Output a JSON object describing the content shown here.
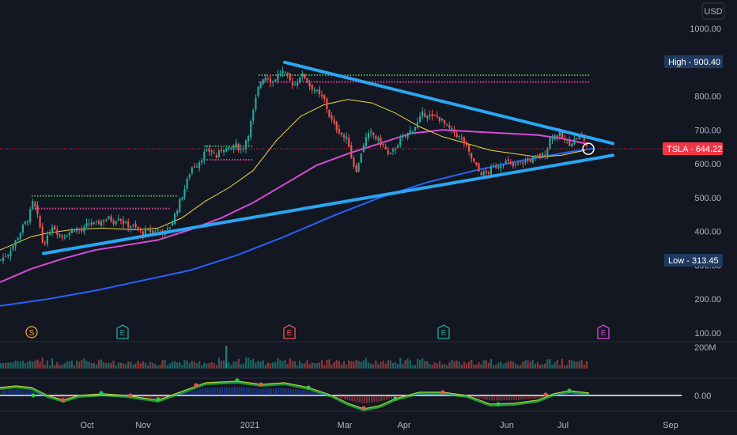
{
  "chart_data": {
    "type": "candlestick",
    "symbol": "TSLA",
    "currency": "USD",
    "last_price": 644.22,
    "high": {
      "label": "High",
      "value": 900.4
    },
    "low": {
      "label": "Low",
      "value": 313.45
    },
    "y_ticks": [
      "1000.00",
      "900.00",
      "800.00",
      "700.00",
      "600.00",
      "500.00",
      "400.00",
      "300.00",
      "200.00",
      "100.00"
    ],
    "x_ticks": [
      "Oct",
      "Nov",
      "2021",
      "Mar",
      "Apr",
      "Jun",
      "Jul",
      "Sep"
    ],
    "volume_tick": "200M",
    "osc_tick": "0.00",
    "ylim": [
      100,
      1000
    ],
    "events": [
      "S",
      "E",
      "E",
      "E",
      "E"
    ],
    "close_path": [
      [
        0,
        315
      ],
      [
        10,
        335
      ],
      [
        20,
        372
      ],
      [
        28,
        410
      ],
      [
        36,
        440
      ],
      [
        42,
        490
      ],
      [
        46,
        455
      ],
      [
        50,
        420
      ],
      [
        54,
        365
      ],
      [
        60,
        380
      ],
      [
        66,
        420
      ],
      [
        72,
        400
      ],
      [
        78,
        385
      ],
      [
        86,
        395
      ],
      [
        95,
        410
      ],
      [
        104,
        400
      ],
      [
        112,
        425
      ],
      [
        120,
        420
      ],
      [
        128,
        430
      ],
      [
        136,
        440
      ],
      [
        144,
        430
      ],
      [
        150,
        445
      ],
      [
        158,
        420
      ],
      [
        166,
        418
      ],
      [
        174,
        405
      ],
      [
        180,
        395
      ],
      [
        186,
        400
      ],
      [
        194,
        402
      ],
      [
        202,
        405
      ],
      [
        210,
        395
      ],
      [
        218,
        430
      ],
      [
        226,
        480
      ],
      [
        234,
        530
      ],
      [
        242,
        590
      ],
      [
        250,
        600
      ],
      [
        258,
        630
      ],
      [
        266,
        640
      ],
      [
        274,
        620
      ],
      [
        282,
        650
      ],
      [
        290,
        640
      ],
      [
        298,
        655
      ],
      [
        306,
        640
      ],
      [
        314,
        690
      ],
      [
        320,
        750
      ],
      [
        326,
        820
      ],
      [
        332,
        855
      ],
      [
        338,
        860
      ],
      [
        344,
        840
      ],
      [
        350,
        860
      ],
      [
        356,
        875
      ],
      [
        362,
        860
      ],
      [
        368,
        840
      ],
      [
        374,
        835
      ],
      [
        380,
        865
      ],
      [
        386,
        855
      ],
      [
        392,
        830
      ],
      [
        398,
        820
      ],
      [
        404,
        800
      ],
      [
        410,
        790
      ],
      [
        416,
        745
      ],
      [
        422,
        715
      ],
      [
        428,
        700
      ],
      [
        434,
        680
      ],
      [
        440,
        670
      ],
      [
        446,
        600
      ],
      [
        452,
        580
      ],
      [
        458,
        650
      ],
      [
        464,
        680
      ],
      [
        470,
        690
      ],
      [
        478,
        670
      ],
      [
        486,
        650
      ],
      [
        492,
        620
      ],
      [
        498,
        640
      ],
      [
        504,
        665
      ],
      [
        510,
        675
      ],
      [
        516,
        690
      ],
      [
        522,
        705
      ],
      [
        528,
        720
      ],
      [
        534,
        745
      ],
      [
        540,
        750
      ],
      [
        546,
        735
      ],
      [
        552,
        740
      ],
      [
        558,
        730
      ],
      [
        564,
        710
      ],
      [
        570,
        700
      ],
      [
        576,
        690
      ],
      [
        582,
        675
      ],
      [
        588,
        660
      ],
      [
        594,
        625
      ],
      [
        600,
        600
      ],
      [
        606,
        575
      ],
      [
        612,
        570
      ],
      [
        618,
        575
      ],
      [
        624,
        590
      ],
      [
        630,
        595
      ],
      [
        636,
        605
      ],
      [
        642,
        605
      ],
      [
        648,
        590
      ],
      [
        654,
        600
      ],
      [
        660,
        605
      ],
      [
        666,
        610
      ],
      [
        672,
        612
      ],
      [
        678,
        620
      ],
      [
        684,
        620
      ],
      [
        690,
        630
      ],
      [
        696,
        680
      ],
      [
        702,
        685
      ],
      [
        708,
        685
      ],
      [
        714,
        670
      ],
      [
        720,
        660
      ],
      [
        726,
        670
      ],
      [
        732,
        680
      ],
      [
        738,
        675
      ],
      [
        744,
        644
      ]
    ],
    "ma_yellow": [
      [
        0,
        345
      ],
      [
        20,
        365
      ],
      [
        40,
        385
      ],
      [
        60,
        395
      ],
      [
        90,
        405
      ],
      [
        130,
        410
      ],
      [
        170,
        405
      ],
      [
        200,
        410
      ],
      [
        230,
        440
      ],
      [
        260,
        490
      ],
      [
        290,
        530
      ],
      [
        320,
        580
      ],
      [
        350,
        670
      ],
      [
        380,
        740
      ],
      [
        410,
        775
      ],
      [
        440,
        790
      ],
      [
        470,
        780
      ],
      [
        500,
        750
      ],
      [
        530,
        710
      ],
      [
        560,
        680
      ],
      [
        590,
        660
      ],
      [
        620,
        640
      ],
      [
        650,
        630
      ],
      [
        680,
        620
      ],
      [
        710,
        625
      ],
      [
        740,
        640
      ]
    ],
    "ma_magenta": [
      [
        0,
        250
      ],
      [
        40,
        290
      ],
      [
        80,
        320
      ],
      [
        120,
        345
      ],
      [
        160,
        360
      ],
      [
        200,
        375
      ],
      [
        240,
        405
      ],
      [
        280,
        440
      ],
      [
        320,
        485
      ],
      [
        360,
        540
      ],
      [
        400,
        595
      ],
      [
        440,
        630
      ],
      [
        480,
        660
      ],
      [
        520,
        690
      ],
      [
        560,
        700
      ],
      [
        600,
        695
      ],
      [
        640,
        690
      ],
      [
        680,
        685
      ],
      [
        710,
        675
      ],
      [
        740,
        660
      ]
    ],
    "ma_blue": [
      [
        0,
        180
      ],
      [
        60,
        200
      ],
      [
        120,
        225
      ],
      [
        180,
        255
      ],
      [
        240,
        285
      ],
      [
        300,
        330
      ],
      [
        360,
        385
      ],
      [
        420,
        445
      ],
      [
        480,
        500
      ],
      [
        540,
        545
      ],
      [
        600,
        580
      ],
      [
        660,
        610
      ],
      [
        720,
        635
      ],
      [
        750,
        645
      ]
    ],
    "trend_upper": [
      [
        360,
        900
      ],
      [
        775,
        660
      ]
    ],
    "trend_lower": [
      [
        55,
        335
      ],
      [
        775,
        625
      ]
    ],
    "hline_green_2021": {
      "x": [
        327,
        745
      ],
      "y": 862
    },
    "hline_pink_2021": {
      "x": [
        327,
        745
      ],
      "y": 842
    },
    "hline_green_sep": {
      "x": [
        40,
        225
      ],
      "y": 505
    },
    "hline_pink_sep": {
      "x": [
        45,
        215
      ],
      "y": 468
    },
    "hline_green_jan": {
      "x": [
        258,
        320
      ],
      "y": 652
    },
    "hline_pink_jan": {
      "x": [
        258,
        320
      ],
      "y": 612
    }
  },
  "colors": {
    "background": "#131722",
    "up": "#26a69a",
    "down": "#ef5350",
    "ma_yellow": "#f0d83c",
    "ma_magenta": "#d84bd8",
    "ma_blue": "#2962ff",
    "trendline": "#2aa6f3",
    "price_tag": "#f23645",
    "high_low_tag": "#1e3a5f"
  }
}
